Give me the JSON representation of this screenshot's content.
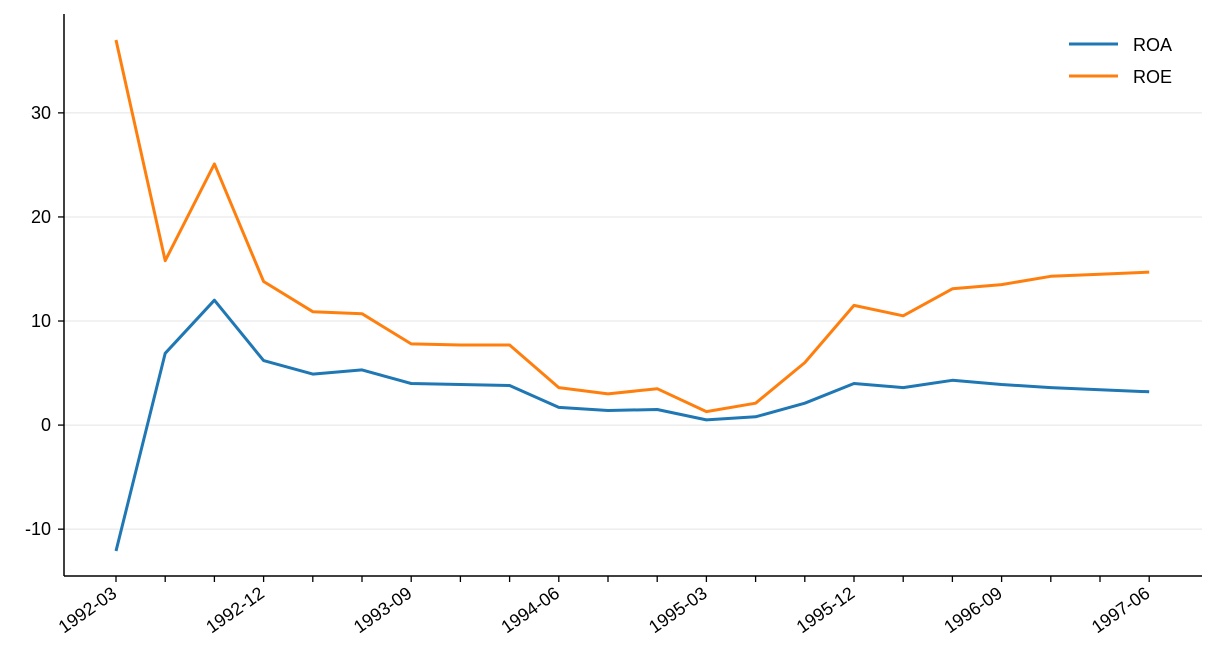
{
  "chart_data": {
    "type": "line",
    "title": "",
    "xlabel": "",
    "ylabel": "",
    "x": [
      "1992-03",
      "1992-06",
      "1992-09",
      "1992-12",
      "1993-03",
      "1993-06",
      "1993-09",
      "1993-12",
      "1994-03",
      "1994-06",
      "1994-09",
      "1994-12",
      "1995-03",
      "1995-06",
      "1995-09",
      "1995-12",
      "1996-03",
      "1996-06",
      "1996-09",
      "1996-12",
      "1997-03",
      "1997-06"
    ],
    "xtick_labels": [
      "1992-03",
      "1992-12",
      "1993-09",
      "1994-06",
      "1995-03",
      "1995-12",
      "1996-09",
      "1997-06"
    ],
    "yticks": [
      -10,
      0,
      10,
      20,
      30
    ],
    "ylim": [
      -14.5,
      39.5
    ],
    "grid": "horizontal",
    "legend_position": "top-right",
    "series": [
      {
        "name": "ROA",
        "color": "#1f77b4",
        "values": [
          -12.1,
          6.9,
          12.0,
          6.2,
          4.9,
          5.3,
          4.0,
          3.9,
          3.8,
          1.7,
          1.4,
          1.5,
          0.5,
          0.8,
          2.1,
          4.0,
          3.6,
          4.3,
          3.9,
          3.6,
          3.4,
          3.2
        ]
      },
      {
        "name": "ROE",
        "color": "#ff7f0e",
        "values": [
          37.0,
          15.8,
          25.1,
          13.8,
          10.9,
          10.7,
          7.8,
          7.7,
          7.7,
          3.6,
          3.0,
          3.5,
          1.3,
          2.1,
          6.0,
          11.5,
          10.5,
          13.1,
          13.5,
          14.3,
          14.5,
          14.7
        ]
      }
    ]
  }
}
